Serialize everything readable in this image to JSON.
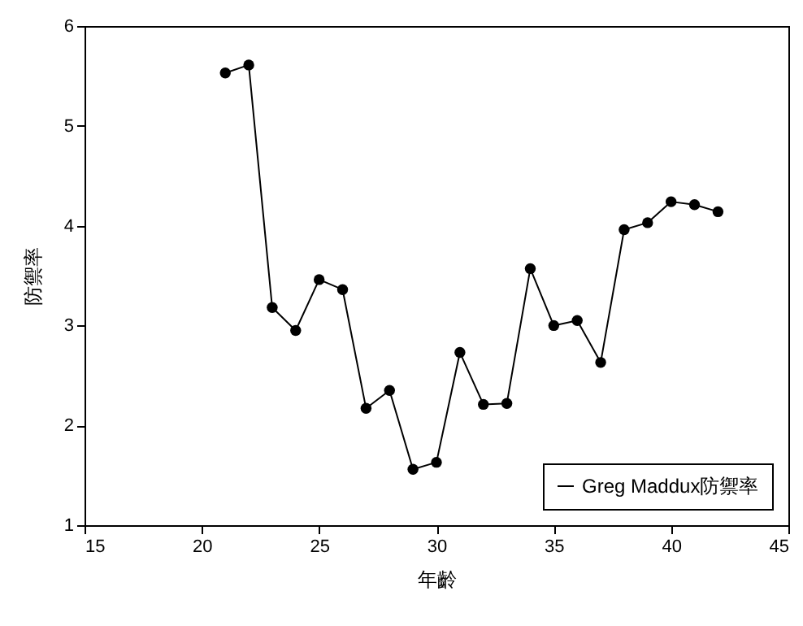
{
  "chart_data": {
    "type": "line",
    "xlabel": "年齡",
    "ylabel": "防禦率",
    "x": [
      21,
      22,
      23,
      24,
      25,
      26,
      27,
      28,
      29,
      30,
      31,
      32,
      33,
      34,
      35,
      36,
      37,
      38,
      39,
      40,
      41,
      42
    ],
    "series": [
      {
        "name": "Greg Maddux防禦率",
        "color": "#000000",
        "values": [
          5.53,
          5.61,
          3.18,
          2.95,
          3.46,
          3.36,
          2.17,
          2.35,
          1.56,
          1.63,
          2.73,
          2.21,
          2.22,
          3.57,
          3.0,
          3.05,
          2.63,
          3.96,
          4.03,
          4.24,
          4.21,
          4.14
        ]
      }
    ],
    "xlim": [
      15,
      45
    ],
    "xticks": [
      15,
      20,
      25,
      30,
      35,
      40,
      45
    ],
    "ylim": [
      1,
      6
    ],
    "yticks": [
      1,
      2,
      3,
      4,
      5,
      6
    ],
    "grid": false,
    "legend": "bottom right",
    "marker": "circle",
    "line_style": "solid"
  }
}
